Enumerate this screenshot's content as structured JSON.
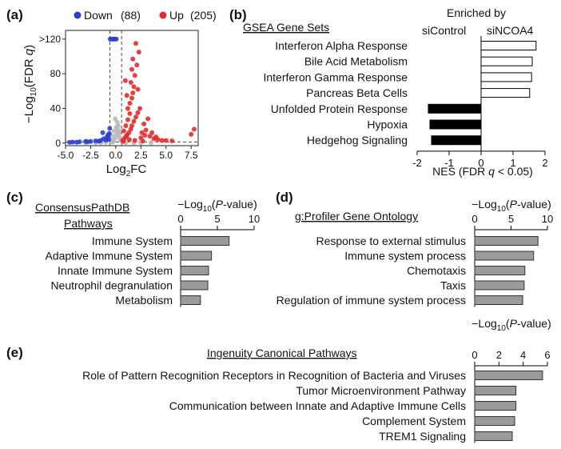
{
  "panels": {
    "a": "(a)",
    "b": "(b)",
    "c": "(c)",
    "d": "(d)",
    "e": "(e)"
  },
  "colors": {
    "down": "#2b3fd0",
    "up": "#e52a2a",
    "ns": "#b9b9b9",
    "bar_black": "#000000",
    "bar_gray": "#9a9a9a",
    "bar_white": "#ffffff"
  },
  "chart_data": [
    {
      "type": "scatter",
      "panel": "a",
      "legend": [
        {
          "name": "Down",
          "count": "(88)",
          "color": "#2b3fd0"
        },
        {
          "name": "Up",
          "count": "(205)",
          "color": "#e52a2a"
        }
      ],
      "xlabel": "Log2FC",
      "ylabel": "−Log10(FDR q)",
      "xlim": [
        -5.0,
        8.2
      ],
      "ylim": [
        -3,
        130
      ],
      "xticks": [
        "-5.0",
        "-2.5",
        "0.0",
        "2.5",
        "5.0",
        "7.5"
      ],
      "xtick_values": [
        -5.0,
        -2.5,
        0.0,
        2.5,
        5.0,
        7.5
      ],
      "yticks": [
        "0",
        "40",
        "80",
        ">120"
      ],
      "ytick_values": [
        0,
        40,
        80,
        120
      ],
      "thresholds": {
        "x": [
          -0.58,
          0.58
        ],
        "y": 1.3
      },
      "series": [
        {
          "name": "Down",
          "points": [
            [
              -4.3,
              1.2
            ],
            [
              -3.6,
              1.5
            ],
            [
              -3.0,
              2.0
            ],
            [
              -2.5,
              1.8
            ],
            [
              -2.0,
              2.5
            ],
            [
              -1.5,
              3.0
            ],
            [
              -1.2,
              5.0
            ],
            [
              -0.9,
              6.5
            ],
            [
              -0.8,
              9.0
            ],
            [
              -0.7,
              4.0
            ],
            [
              -1.0,
              3.5
            ],
            [
              -4.6,
              0.8
            ],
            [
              -3.9,
              0.9
            ],
            [
              -0.55,
              120
            ],
            [
              -0.35,
              120
            ],
            [
              -0.1,
              120
            ],
            [
              0.05,
              120
            ],
            [
              -0.25,
              120
            ],
            [
              -0.6,
              17
            ],
            [
              -1.3,
              12
            ],
            [
              -0.75,
              7.8
            ],
            [
              -0.65,
              11
            ],
            [
              -2.8,
              1.4
            ],
            [
              -1.7,
              2.2
            ]
          ]
        },
        {
          "name": "Up",
          "points": [
            [
              0.7,
              3
            ],
            [
              0.9,
              6
            ],
            [
              1.1,
              9
            ],
            [
              1.3,
              12
            ],
            [
              1.5,
              16
            ],
            [
              1.6,
              20
            ],
            [
              1.8,
              25
            ],
            [
              2.0,
              30
            ],
            [
              2.2,
              35
            ],
            [
              1.2,
              40
            ],
            [
              1.4,
              46
            ],
            [
              1.6,
              52
            ],
            [
              1.7,
              58
            ],
            [
              1.8,
              65
            ],
            [
              1.5,
              70
            ],
            [
              1.9,
              78
            ],
            [
              1.6,
              85
            ],
            [
              2.1,
              90
            ],
            [
              1.7,
              97
            ],
            [
              2.3,
              105
            ],
            [
              2.0,
              115
            ],
            [
              2.6,
              12
            ],
            [
              3.0,
              15
            ],
            [
              3.4,
              8
            ],
            [
              3.8,
              5
            ],
            [
              4.2,
              4
            ],
            [
              4.6,
              3
            ],
            [
              2.8,
              22
            ],
            [
              2.4,
              40
            ],
            [
              3.2,
              28
            ],
            [
              0.8,
              14
            ],
            [
              1.0,
              20
            ],
            [
              1.2,
              27
            ],
            [
              1.4,
              34
            ],
            [
              2.5,
              6
            ],
            [
              5.0,
              3
            ],
            [
              5.6,
              2.5
            ],
            [
              7.5,
              10
            ],
            [
              7.8,
              16
            ],
            [
              1.1,
              55
            ],
            [
              0.95,
              72
            ],
            [
              2.2,
              62
            ],
            [
              2.9,
              9
            ],
            [
              3.6,
              12
            ],
            [
              4.0,
              7
            ],
            [
              0.75,
              2
            ],
            [
              1.35,
              4
            ],
            [
              1.9,
              3
            ],
            [
              2.7,
              2.4
            ],
            [
              1.05,
              8
            ]
          ]
        },
        {
          "name": "NS",
          "points": [
            [
              -0.3,
              1
            ],
            [
              -0.2,
              3
            ],
            [
              -0.1,
              5
            ],
            [
              0.0,
              8
            ],
            [
              0.1,
              12
            ],
            [
              0.2,
              15
            ],
            [
              0.3,
              10
            ],
            [
              0.4,
              6
            ],
            [
              -0.4,
              4
            ],
            [
              0.25,
              20
            ],
            [
              0.15,
              24
            ],
            [
              -0.15,
              14
            ],
            [
              -2.0,
              0.4
            ],
            [
              -1.5,
              0.6
            ],
            [
              -1.0,
              0.8
            ],
            [
              1.0,
              0.5
            ],
            [
              1.8,
              0.4
            ],
            [
              2.5,
              0.3
            ],
            [
              -3.0,
              0.3
            ],
            [
              3.5,
              0.3
            ],
            [
              -0.5,
              2
            ],
            [
              0.45,
              3
            ],
            [
              0.05,
              18
            ],
            [
              -0.05,
              28
            ],
            [
              0.35,
              14
            ],
            [
              -0.45,
              9
            ]
          ]
        }
      ]
    },
    {
      "type": "bar",
      "panel": "b",
      "subtitle": "GSEA Gene Sets",
      "header": "Enriched by",
      "header_left": "siControl",
      "header_right": "siNCOA4",
      "categories": [
        "Interferon Alpha Response",
        "Bile Acid Metabolism",
        "Interferon Gamma Response",
        "Pancreas Beta Cells",
        "Unfolded Protein Response",
        "Hypoxia",
        "Hedgehog Signaling"
      ],
      "values": [
        1.72,
        1.6,
        1.58,
        1.52,
        -1.65,
        -1.6,
        -1.55
      ],
      "xlabel_prefix": "NES (FDR ",
      "xlabel_var": "q",
      "xlabel_suffix": " < 0.05)",
      "xlim": [
        -2,
        2
      ],
      "xticks": [
        "-2",
        "-1",
        "0",
        "1",
        "2"
      ],
      "xtick_values": [
        -2,
        -1,
        0,
        1,
        2
      ]
    },
    {
      "type": "bar",
      "panel": "c",
      "subtitle_lines": [
        "ConsensusPathDB",
        "Pathways"
      ],
      "axis_title": "−Log10(P-value)",
      "categories": [
        "Immune System",
        "Adaptive Immune System",
        "Innate Immune System",
        "Neutrophil degranulation",
        "Metabolism"
      ],
      "values": [
        6.6,
        4.2,
        3.8,
        3.7,
        2.7
      ],
      "xlim": [
        0,
        10
      ],
      "xticks": [
        "0",
        "5",
        "10"
      ],
      "xtick_values": [
        0,
        5,
        10
      ]
    },
    {
      "type": "bar",
      "panel": "d",
      "subtitle": "g:Profiler Gene Ontology",
      "axis_title": "−Log10(P-value)",
      "categories": [
        "Response to external stimulus",
        "Immune system process",
        "Chemotaxis",
        "Taxis",
        "Regulation of immune system process"
      ],
      "values": [
        8.7,
        8.1,
        6.9,
        6.8,
        6.6
      ],
      "xlim": [
        0,
        10
      ],
      "xticks": [
        "0",
        "5",
        "10"
      ],
      "xtick_values": [
        0,
        5,
        10
      ]
    },
    {
      "type": "bar",
      "panel": "e",
      "subtitle": "Ingenuity Canonical Pathways",
      "axis_title": "−Log10(P-value)",
      "categories": [
        "Role of Pattern Recognition Receptors in Recognition of Bacteria and Viruses",
        "Tumor Microenvironment Pathway",
        "Communication between Innate and Adaptive Immune Cells",
        "Complement System",
        "TREM1 Signaling"
      ],
      "values": [
        5.6,
        3.4,
        3.4,
        3.3,
        3.1
      ],
      "xlim": [
        0,
        6
      ],
      "xticks": [
        "0",
        "2",
        "4",
        "6"
      ],
      "xtick_values": [
        0,
        2,
        4,
        6
      ]
    }
  ]
}
